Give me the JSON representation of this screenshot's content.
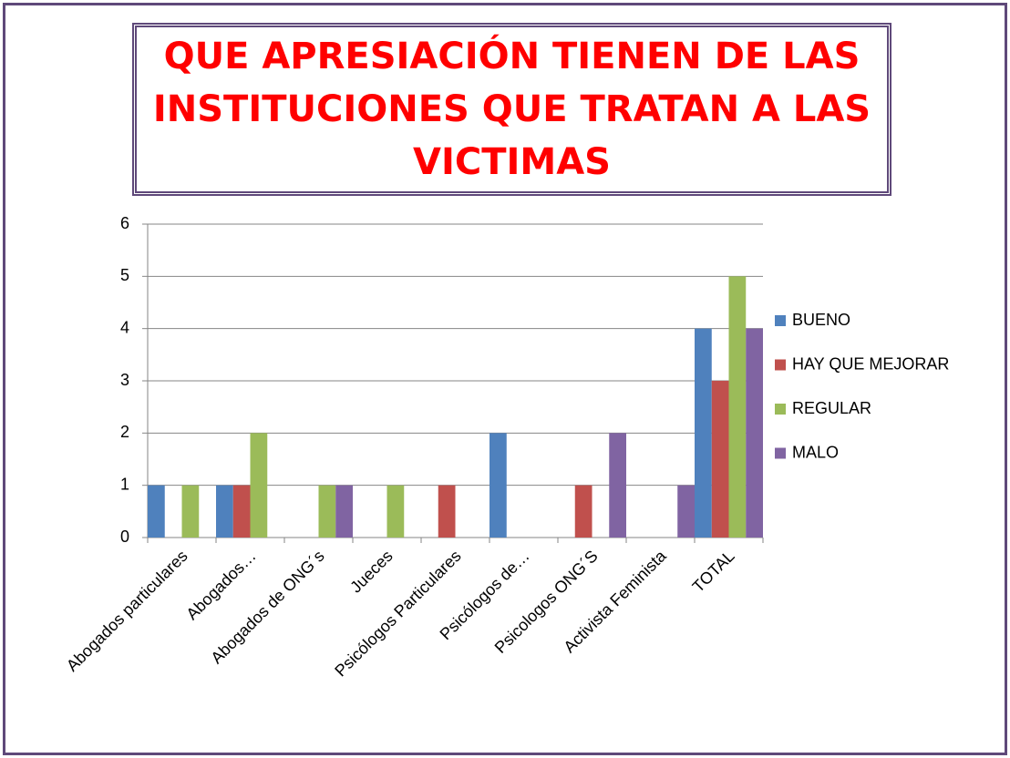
{
  "chart_data": {
    "type": "bar",
    "title": "QUE APRESIACIÓN  TIENEN DE LAS INSTITUCIONES QUE TRATAN A LAS VICTIMAS",
    "categories": [
      "Abogados particulares",
      "Abogados…",
      "Abogados de ONG´s",
      "Jueces",
      "Psicólogos Particulares",
      "Psicólogos de…",
      "Psicologos ONG´S",
      "Activista Feminista",
      "TOTAL"
    ],
    "series": [
      {
        "name": "BUENO",
        "color": "#4f81bd",
        "values": [
          1,
          1,
          0,
          0,
          0,
          2,
          0,
          0,
          4
        ]
      },
      {
        "name": "HAY QUE MEJORAR",
        "color": "#c0504d",
        "values": [
          0,
          1,
          0,
          0,
          1,
          0,
          1,
          0,
          3
        ]
      },
      {
        "name": "REGULAR",
        "color": "#9bbb59",
        "values": [
          1,
          2,
          1,
          1,
          0,
          0,
          0,
          0,
          5
        ]
      },
      {
        "name": "MALO",
        "color": "#8064a2",
        "values": [
          0,
          0,
          1,
          0,
          0,
          0,
          2,
          1,
          4
        ]
      }
    ],
    "ylim": [
      0,
      6
    ],
    "yticks": [
      0,
      1,
      2,
      3,
      4,
      5,
      6
    ],
    "grid": true,
    "legend": "right"
  }
}
